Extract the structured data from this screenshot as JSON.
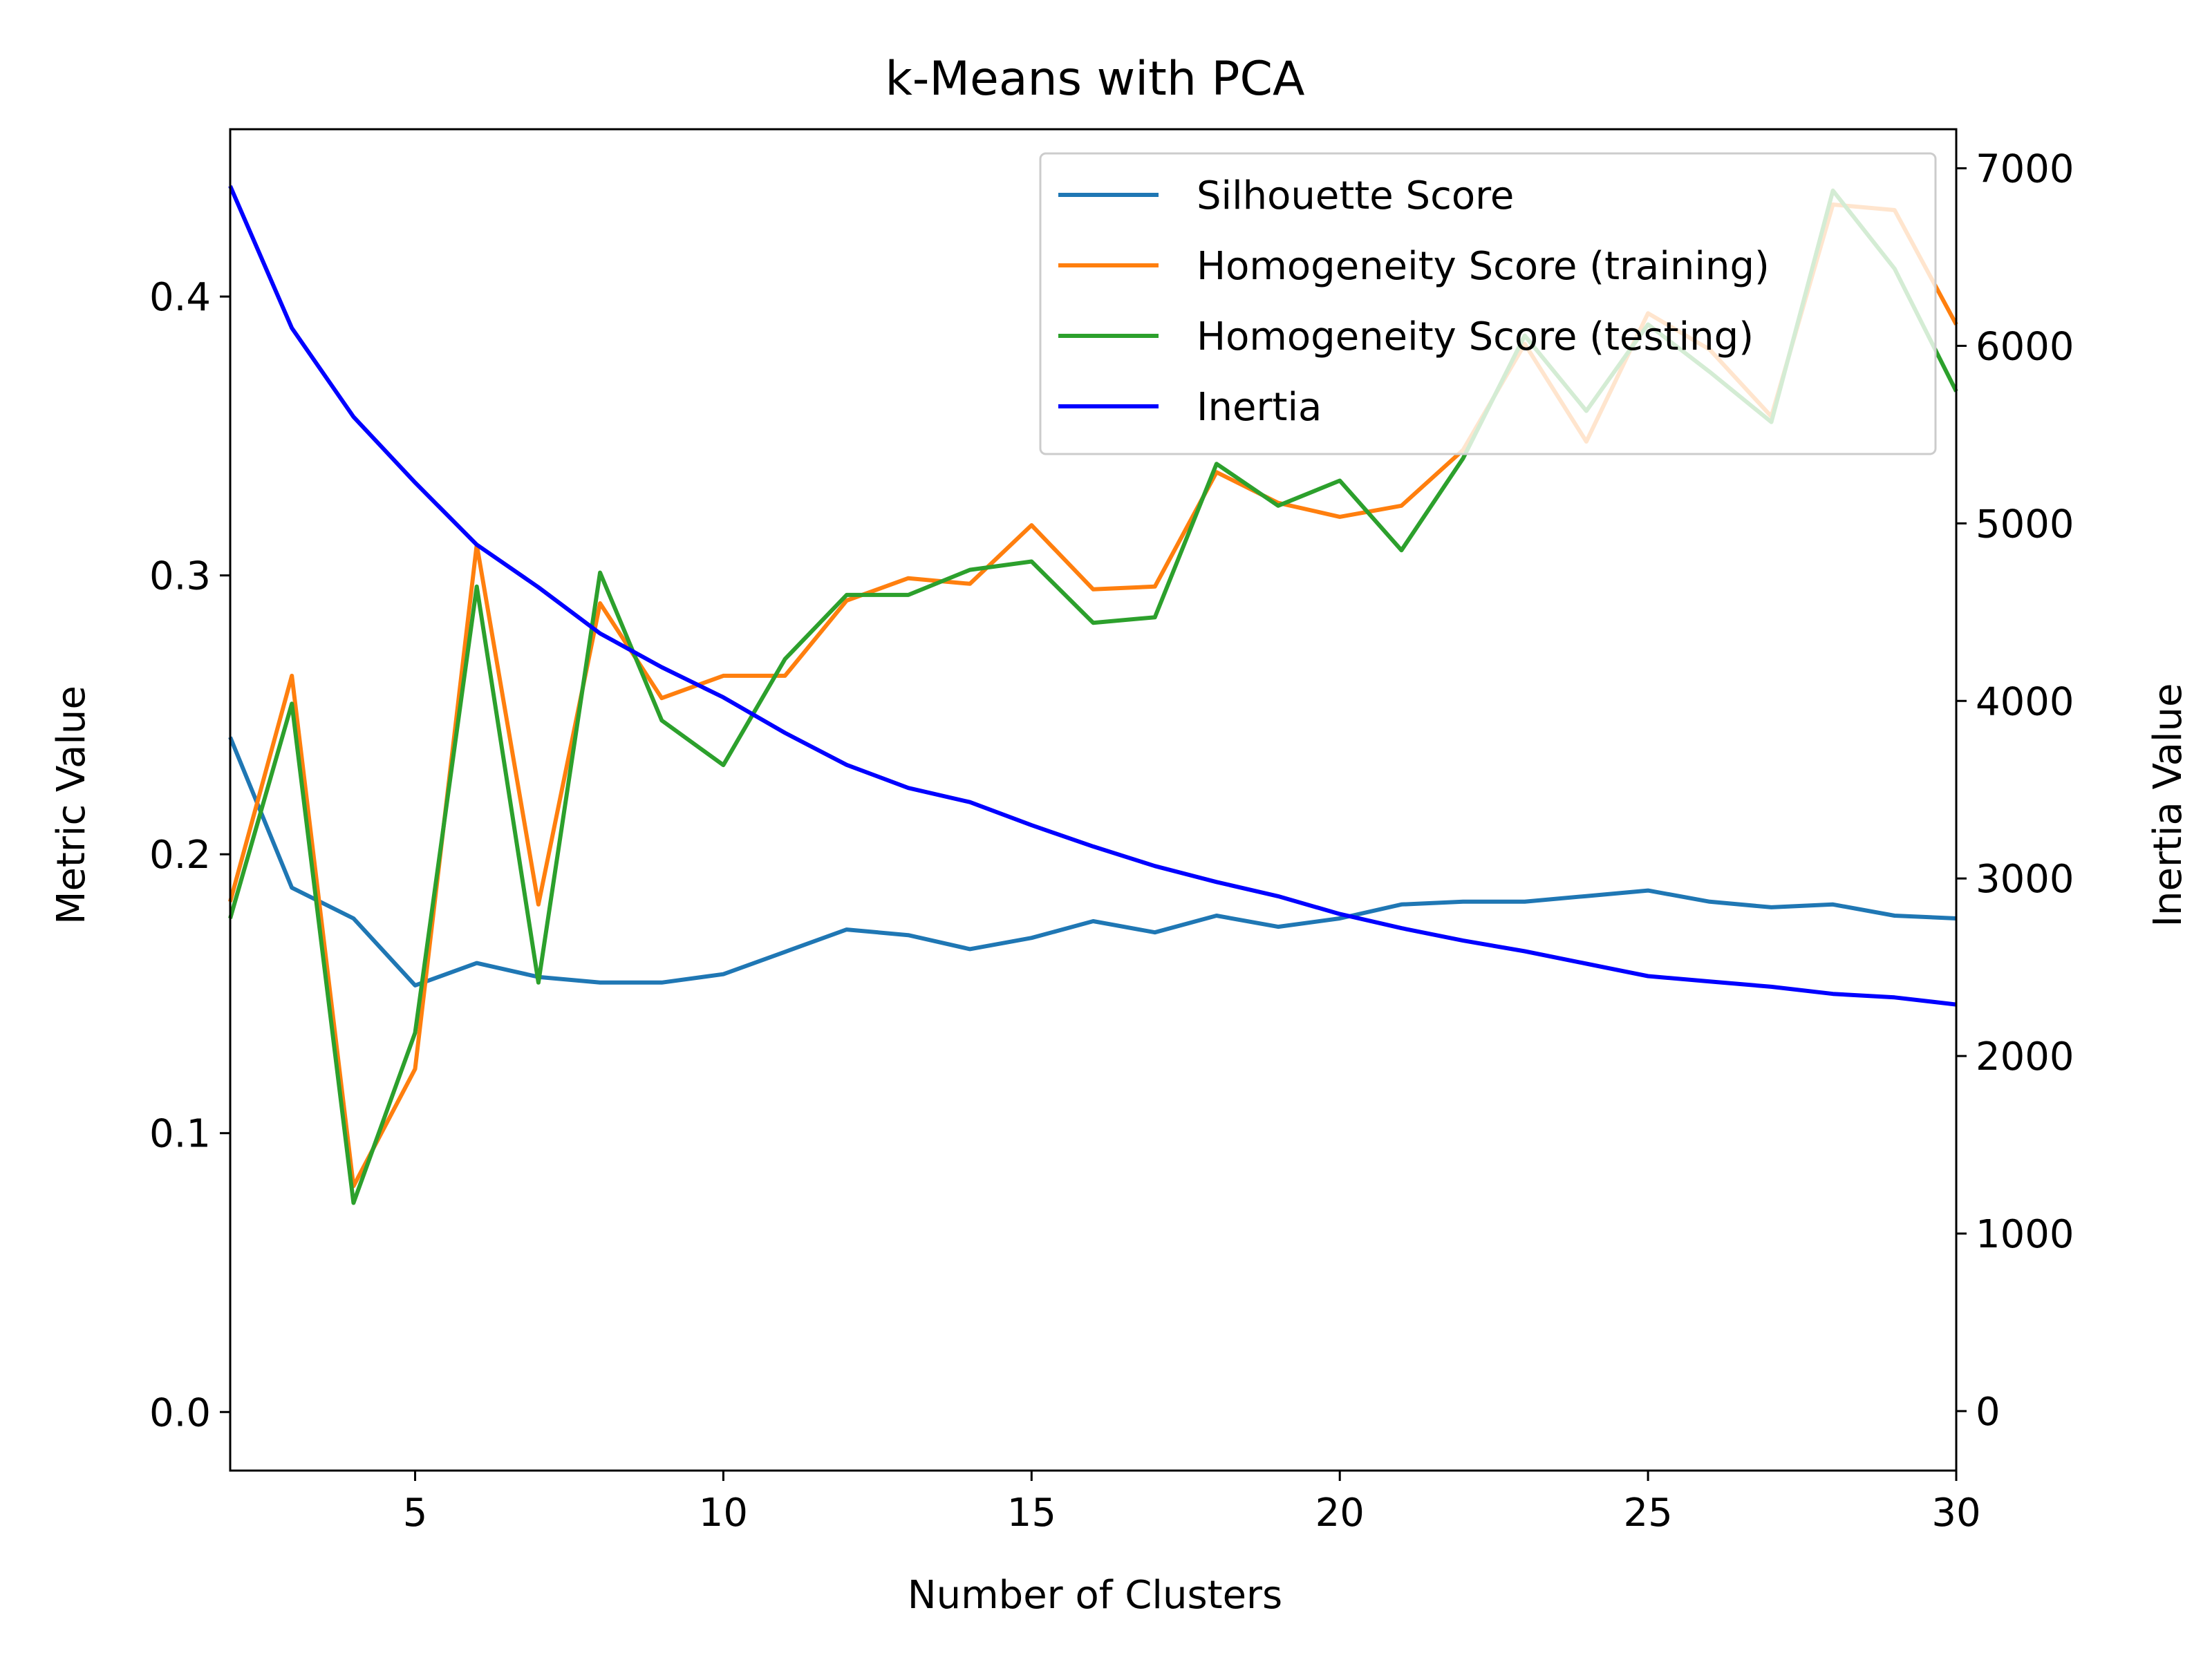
{
  "chart_data": {
    "type": "line",
    "title": "k-Means with PCA",
    "xlabel": "Number of Clusters",
    "ylabel_left": "Metric Value",
    "ylabel_right": "Inertia Value",
    "xlim": [
      2,
      30
    ],
    "ylim_left": [
      -0.021,
      0.46
    ],
    "ylim_right": [
      -335,
      7220
    ],
    "x_ticks": [
      5,
      10,
      15,
      20,
      25,
      30
    ],
    "y_left_ticks": [
      0.0,
      0.1,
      0.2,
      0.3,
      0.4
    ],
    "y_right_ticks": [
      0,
      1000,
      2000,
      3000,
      4000,
      5000,
      6000,
      7000
    ],
    "grid": false,
    "legend_position": "top-right",
    "x": [
      2,
      3,
      4,
      5,
      6,
      7,
      8,
      9,
      10,
      11,
      12,
      13,
      14,
      15,
      16,
      17,
      18,
      19,
      20,
      21,
      22,
      23,
      24,
      25,
      26,
      27,
      28,
      29,
      30
    ],
    "series": [
      {
        "name": "Silhouette Score",
        "axis": "left",
        "color": "#1f77b4",
        "values": [
          0.242,
          0.188,
          0.177,
          0.153,
          0.161,
          0.156,
          0.154,
          0.154,
          0.157,
          0.165,
          0.173,
          0.171,
          0.166,
          0.17,
          0.176,
          0.172,
          0.178,
          0.174,
          0.177,
          0.182,
          0.183,
          0.183,
          0.185,
          0.187,
          0.183,
          0.181,
          0.182,
          0.178,
          0.177
        ]
      },
      {
        "name": "Homogeneity Score (training)",
        "axis": "left",
        "color": "#ff7f0e",
        "values": [
          0.183,
          0.264,
          0.081,
          0.123,
          0.311,
          0.182,
          0.29,
          0.256,
          0.264,
          0.264,
          0.291,
          0.299,
          0.297,
          0.318,
          0.295,
          0.296,
          0.337,
          0.326,
          0.321,
          0.325,
          0.345,
          0.383,
          0.348,
          0.394,
          0.381,
          0.357,
          0.433,
          0.431,
          0.39
        ]
      },
      {
        "name": "Homogeneity Score (testing)",
        "axis": "left",
        "color": "#2ca02c",
        "values": [
          0.177,
          0.254,
          0.075,
          0.136,
          0.296,
          0.154,
          0.301,
          0.248,
          0.232,
          0.27,
          0.293,
          0.293,
          0.302,
          0.305,
          0.283,
          0.285,
          0.34,
          0.325,
          0.334,
          0.309,
          0.342,
          0.386,
          0.359,
          0.39,
          0.373,
          0.355,
          0.438,
          0.41,
          0.366
        ]
      },
      {
        "name": "Inertia",
        "axis": "right",
        "color": "#0000ff",
        "values": [
          6900,
          6100,
          5600,
          5230,
          4880,
          4640,
          4380,
          4190,
          4020,
          3820,
          3640,
          3510,
          3430,
          3300,
          3180,
          3070,
          2980,
          2900,
          2800,
          2720,
          2650,
          2590,
          2520,
          2450,
          2420,
          2390,
          2350,
          2330,
          2290
        ]
      }
    ]
  }
}
